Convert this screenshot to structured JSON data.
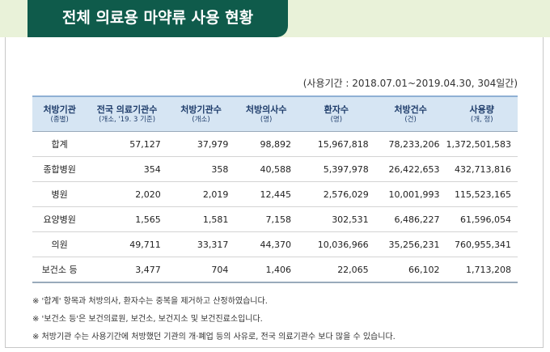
{
  "header": {
    "title": "전체 의료용 마약류 사용 현황"
  },
  "period": "(사용기간 : 2018.07.01~2019.04.30, 304일간)",
  "table": {
    "header": [
      [
        "처방기관",
        "(종별)"
      ],
      [
        "전국 의료기관수",
        "(개소, '19. 3 기준)"
      ],
      [
        "처방기관수",
        "(개소)"
      ],
      [
        "처방의사수",
        "(명)"
      ],
      [
        "환자수",
        "(명)"
      ],
      [
        "처방건수",
        "(건)"
      ],
      [
        "사용량",
        "(개, 정)"
      ]
    ],
    "rows": [
      [
        "합계",
        "57,127",
        "37,979",
        "98,892",
        "15,967,818",
        "78,233,206",
        "1,372,501,583"
      ],
      [
        "종합병원",
        "354",
        "358",
        "40,588",
        "5,397,978",
        "26,422,653",
        "432,713,816"
      ],
      [
        "병원",
        "2,020",
        "2,019",
        "12,445",
        "2,576,029",
        "10,001,993",
        "115,523,165"
      ],
      [
        "요양병원",
        "1,565",
        "1,581",
        "7,158",
        "302,531",
        "6,486,227",
        "61,596,054"
      ],
      [
        "의원",
        "49,711",
        "33,317",
        "44,370",
        "10,036,966",
        "35,256,231",
        "760,955,341"
      ],
      [
        "보건소 등",
        "3,477",
        "704",
        "1,406",
        "22,065",
        "66,102",
        "1,713,208"
      ]
    ]
  },
  "notes": [
    "※ '합계' 항목과 처방의사, 환자수는 중복을 제거하고 산정하였습니다.",
    "※ '보건소 등'은 보건의료원, 보건소, 보건지소 및 보건진료소입니다.",
    "※ 처방기관 수는 사용기간에 처방했던 기관의 개·폐업 등의 사유로, 전국 의료기관수 보다 많을 수 있습니다."
  ]
}
